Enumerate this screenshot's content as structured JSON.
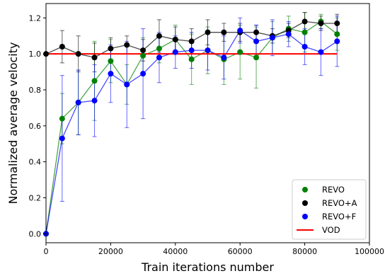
{
  "chart_data": {
    "type": "line",
    "title": "",
    "xlabel": "Train iterations number",
    "ylabel": "Normalized average velocity",
    "xlim": [
      0,
      100000
    ],
    "ylim": [
      -0.05,
      1.28
    ],
    "x_ticks": [
      0,
      20000,
      40000,
      60000,
      80000,
      100000
    ],
    "x_tick_labels": [
      "0",
      "20000",
      "40000",
      "60000",
      "80000",
      "100000"
    ],
    "y_ticks": [
      0.0,
      0.2,
      0.4,
      0.6,
      0.8,
      1.0,
      1.2
    ],
    "y_tick_labels": [
      "0.0",
      "0.2",
      "0.4",
      "0.6",
      "0.8",
      "1.0",
      "1.2"
    ],
    "grid": false,
    "legend_position": "bottom-right",
    "x": [
      0,
      5000,
      10000,
      15000,
      20000,
      25000,
      30000,
      35000,
      40000,
      45000,
      50000,
      55000,
      60000,
      65000,
      70000,
      75000,
      80000,
      85000,
      90000
    ],
    "series": [
      {
        "name": "REVO",
        "color": "#008000",
        "values": [
          0.0,
          0.64,
          0.73,
          0.85,
          0.96,
          0.83,
          0.99,
          1.03,
          1.08,
          0.97,
          1.02,
          0.97,
          1.01,
          0.98,
          1.09,
          1.14,
          1.12,
          1.18,
          1.11
        ],
        "errors": [
          0.0,
          0.14,
          0.18,
          0.22,
          0.12,
          0.11,
          0.1,
          0.08,
          0.08,
          0.14,
          0.13,
          0.14,
          0.15,
          0.17,
          0.09,
          0.07,
          0.11,
          0.04,
          0.09
        ]
      },
      {
        "name": "REVO+A",
        "color": "#000000",
        "values": [
          1.0,
          1.04,
          1.0,
          0.98,
          1.03,
          1.05,
          1.02,
          1.1,
          1.08,
          1.07,
          1.12,
          1.12,
          1.12,
          1.12,
          1.1,
          1.13,
          1.18,
          1.17,
          1.17
        ],
        "errors": [
          0.0,
          0.09,
          0.1,
          0.08,
          0.06,
          0.05,
          0.06,
          0.09,
          0.07,
          0.07,
          0.07,
          0.05,
          0.05,
          0.04,
          0.04,
          0.04,
          0.05,
          0.04,
          0.05
        ]
      },
      {
        "name": "REVO+F",
        "color": "#0000ff",
        "values": [
          0.0,
          0.53,
          0.73,
          0.74,
          0.89,
          0.83,
          0.89,
          0.98,
          1.01,
          1.02,
          1.02,
          0.98,
          1.13,
          1.07,
          1.09,
          1.11,
          1.04,
          1.01,
          1.07
        ],
        "errors": [
          0.0,
          0.35,
          0.18,
          0.2,
          0.16,
          0.24,
          0.25,
          0.14,
          0.09,
          0.1,
          0.11,
          0.12,
          0.07,
          0.09,
          0.1,
          0.07,
          0.1,
          0.13,
          0.14
        ]
      }
    ],
    "reference_line": {
      "name": "VOD",
      "color": "#ff0000",
      "y": 1.0,
      "x_range": [
        0,
        90000
      ]
    }
  }
}
